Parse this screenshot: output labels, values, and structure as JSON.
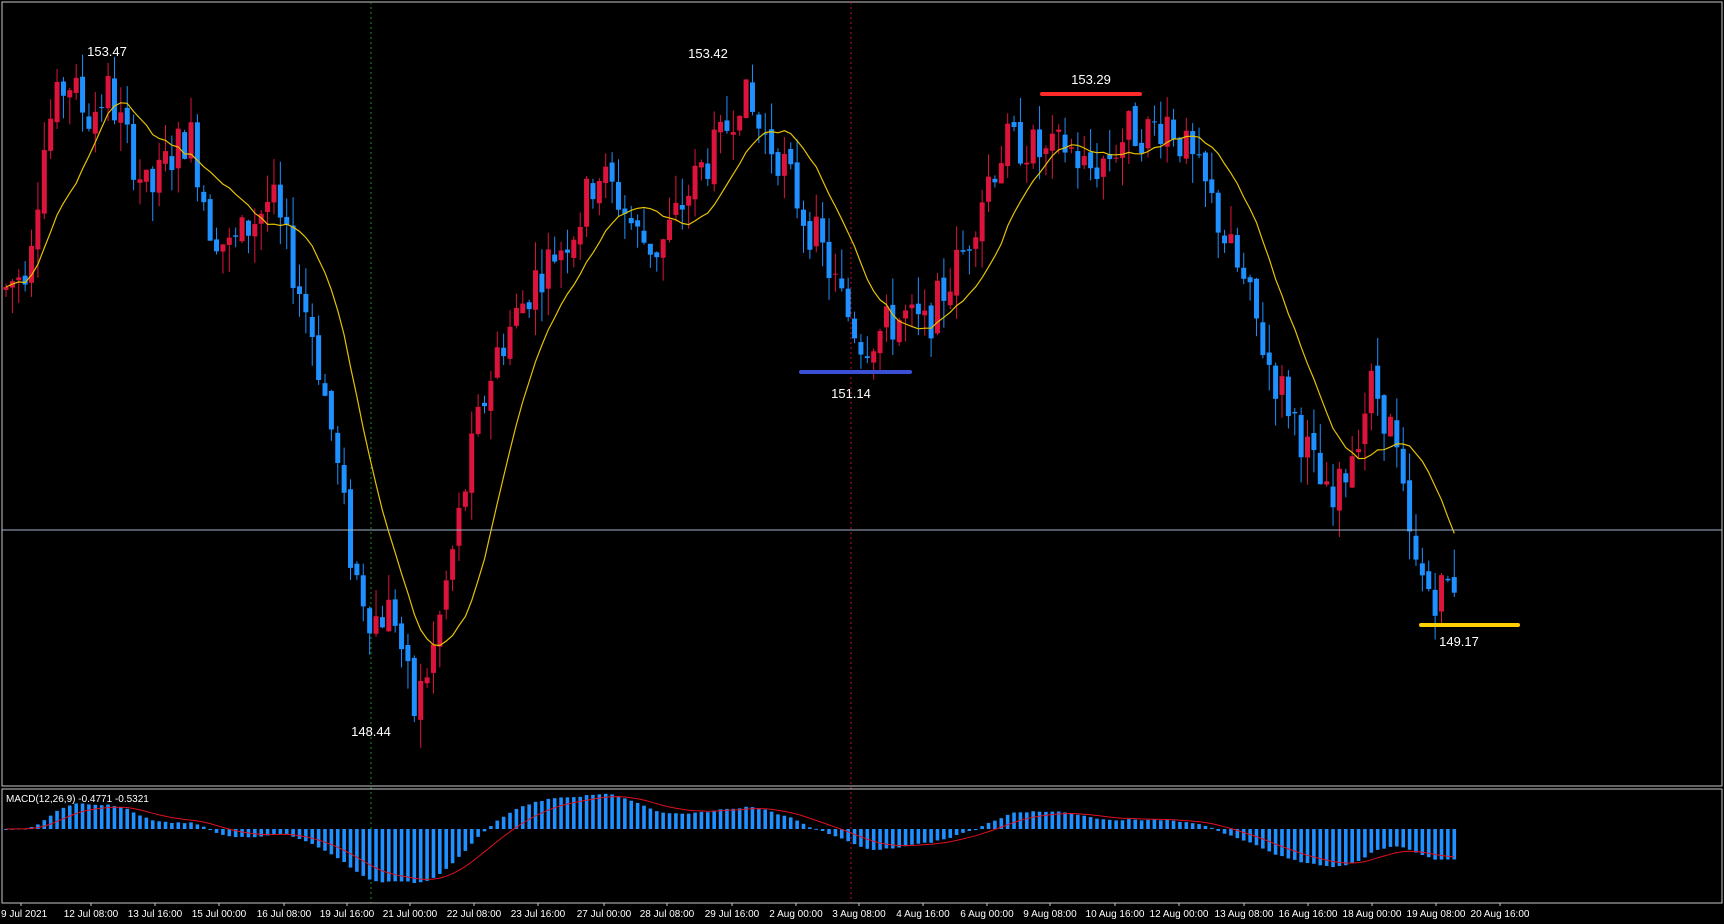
{
  "chart_data": [
    {
      "type": "candlestick",
      "title": "",
      "xlabel": "",
      "ylabel": "",
      "ylim": [
        148.1,
        153.8
      ],
      "grid": false,
      "colors": {
        "bull": "#dc143c",
        "bear": "#1e90ff",
        "ma": "#e6c200",
        "background": "#000000"
      },
      "x_ticks": [
        "9 Jul 2021",
        "12 Jul 08:00",
        "13 Jul 16:00",
        "15 Jul 00:00",
        "16 Jul 08:00",
        "19 Jul 16:00",
        "21 Jul 00:00",
        "22 Jul 08:00",
        "23 Jul 16:00",
        "27 Jul 00:00",
        "28 Jul 08:00",
        "29 Jul 16:00",
        "2 Aug 00:00",
        "3 Aug 08:00",
        "4 Aug 16:00",
        "6 Aug 00:00",
        "9 Aug 08:00",
        "10 Aug 16:00",
        "12 Aug 00:00",
        "13 Aug 08:00",
        "16 Aug 16:00",
        "18 Aug 00:00",
        "19 Aug 08:00",
        "20 Aug 16:00"
      ],
      "close_path": [
        151.7,
        151.9,
        152.9,
        153.3,
        153.0,
        153.2,
        152.8,
        152.4,
        152.7,
        152.9,
        152.2,
        152.0,
        152.2,
        152.4,
        151.9,
        151.4,
        150.6,
        149.6,
        149.2,
        149.3,
        148.5,
        149.0,
        149.8,
        150.6,
        151.2,
        151.5,
        151.8,
        152.0,
        152.2,
        152.6,
        152.4,
        152.1,
        152.0,
        152.3,
        152.6,
        152.8,
        153.2,
        152.9,
        152.7,
        152.3,
        152.0,
        151.6,
        151.3,
        151.4,
        151.5,
        151.4,
        151.7,
        152.0,
        152.5,
        152.8,
        152.8,
        152.7,
        152.8,
        152.6,
        152.7,
        152.9,
        152.9,
        153.0,
        152.7,
        152.4,
        152.0,
        151.6,
        151.1,
        150.8,
        150.4,
        150.0,
        150.5,
        151.0,
        150.6,
        149.6,
        149.4,
        149.5
      ],
      "ma_period": 12,
      "annotations": [
        {
          "text": "153.47",
          "value": 153.47
        },
        {
          "text": "153.42",
          "value": 153.42
        },
        {
          "text": "153.29",
          "value": 153.29,
          "line_color": "#ff2a2a"
        },
        {
          "text": "151.14",
          "value": 151.14,
          "line_color": "#3b4fd6"
        },
        {
          "text": "148.44",
          "value": 148.44
        },
        {
          "text": "149.17",
          "value": 149.17,
          "line_color": "#ffd000"
        }
      ],
      "crosshair_price": 149.5
    },
    {
      "type": "macd",
      "title": "MACD(12,26,9) -0.4771 -0.5321",
      "params": [
        12,
        26,
        9
      ],
      "macd_value": -0.4771,
      "signal_value": -0.5321,
      "colors": {
        "histogram": "#1e90ff",
        "signal": "#e01020"
      }
    }
  ]
}
